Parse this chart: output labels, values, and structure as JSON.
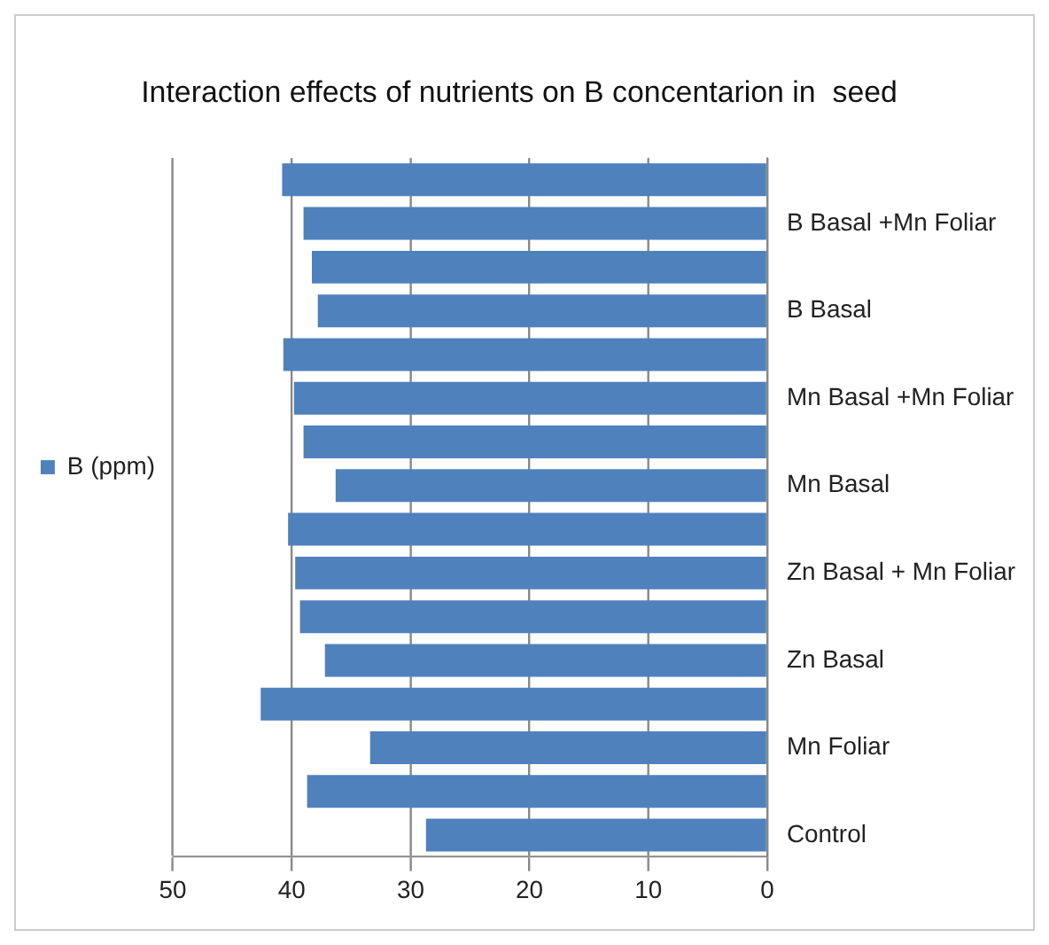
{
  "chart_data": {
    "type": "bar",
    "orientation": "horizontal",
    "title": "Interaction effects of nutrients on B concentarion in  seed",
    "categories": [
      null,
      "B Basal +Mn Foliar",
      null,
      "B Basal",
      null,
      "Mn Basal +Mn Foliar",
      null,
      "Mn Basal",
      null,
      "Zn Basal + Mn Foliar",
      null,
      "Zn Basal",
      null,
      "Mn Foliar",
      null,
      "Control"
    ],
    "series": [
      {
        "name": "B (ppm)",
        "color": "#4f81bd",
        "values": [
          40.8,
          39,
          38.3,
          37.8,
          40.7,
          39.8,
          39,
          36.3,
          40.3,
          39.7,
          39.3,
          37.2,
          42.6,
          33.4,
          38.7,
          28.7
        ]
      }
    ],
    "xlim": [
      50,
      0
    ],
    "xticks": [
      50,
      40,
      30,
      20,
      10,
      0
    ],
    "grid": "x",
    "legend": "left"
  }
}
